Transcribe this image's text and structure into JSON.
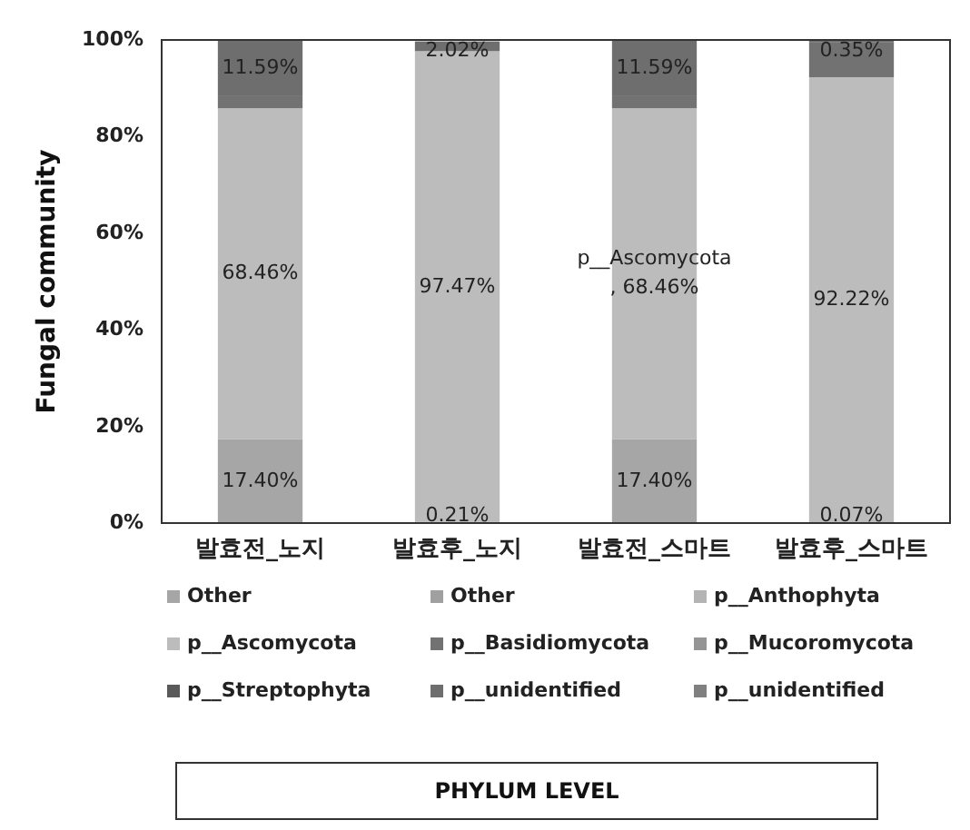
{
  "chart_data": {
    "type": "bar",
    "stacked": true,
    "ylabel": "Fungal community",
    "categories": [
      "발효전_노지",
      "발효후_노지",
      "발효전_스마트",
      "발효후_스마트"
    ],
    "ylim": [
      0,
      100
    ],
    "yticks": [
      {
        "value": 0,
        "label": "0%"
      },
      {
        "value": 20,
        "label": "20%"
      },
      {
        "value": 40,
        "label": "40%"
      },
      {
        "value": 60,
        "label": "60%"
      },
      {
        "value": 80,
        "label": "80%"
      },
      {
        "value": 100,
        "label": "100%"
      }
    ],
    "grid": false,
    "legend": "bottom",
    "series": [
      {
        "name": "Other",
        "color": "#a6a6a6",
        "values": [
          17.4,
          0.21,
          17.4,
          0.07
        ],
        "value_labels": [
          "17.40%",
          "0.21%",
          "17.40%",
          "0.07%"
        ]
      },
      {
        "name": "Other",
        "color": "#a0a0a0",
        "values": [
          0,
          0,
          0,
          0
        ]
      },
      {
        "name": "p__Anthophyta",
        "color": "#b4b4b4",
        "values": [
          0,
          0,
          0,
          0
        ]
      },
      {
        "name": "p__Ascomycota",
        "color": "#bcbcbc",
        "values": [
          68.46,
          97.47,
          68.46,
          92.22
        ],
        "value_labels": [
          "68.46%",
          "97.47%",
          "p__Ascomycota, 68.46%",
          "92.22%"
        ]
      },
      {
        "name": "p__Basidiomycota",
        "color": "#727272",
        "values": [
          2.5,
          null,
          2.5,
          7.3
        ]
      },
      {
        "name": "p__Mucoromycota",
        "color": "#959595",
        "values": [
          0,
          0,
          0,
          0
        ]
      },
      {
        "name": "p__Streptophyta",
        "color": "#5a5a5a",
        "values": [
          0,
          0,
          0,
          0
        ]
      },
      {
        "name": "p__unidentified",
        "color": "#6e6e6e",
        "values": [
          11.59,
          2.02,
          11.59,
          0.35
        ],
        "value_labels": [
          "11.59%",
          "2.02%",
          "11.59%",
          "0.35%"
        ]
      },
      {
        "name": "p__unidentified",
        "color": "#808080",
        "values": [
          0,
          0,
          0,
          0
        ]
      }
    ],
    "annotations": [
      "PHYLUM LEVEL"
    ]
  }
}
